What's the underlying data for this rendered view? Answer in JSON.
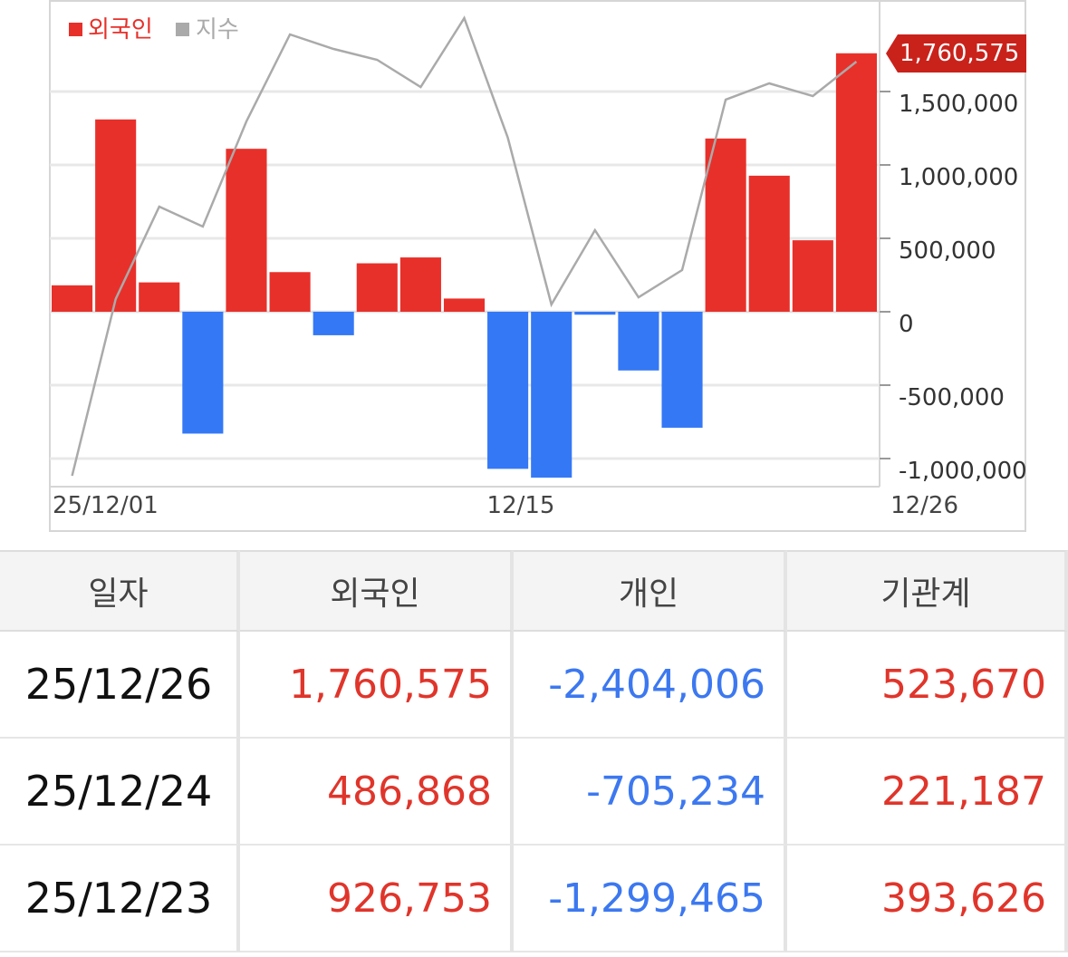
{
  "chart_data": {
    "type": "bar",
    "legend": [
      {
        "name": "외국인",
        "color": "#e8302a"
      },
      {
        "name": "지수",
        "color": "#aaaaaa"
      }
    ],
    "series": [
      {
        "name": "외국인",
        "values": [
          180000,
          1310000,
          200000,
          -830000,
          1110000,
          270000,
          -160000,
          330000,
          370000,
          90000,
          -1070000,
          -1130000,
          -20000,
          -400000,
          -790000,
          1180000,
          926753,
          486868,
          1760575
        ]
      },
      {
        "name": "지수",
        "line_index_values": [
          1.5,
          99,
          150,
          139,
          197,
          245,
          237,
          231,
          216,
          254,
          188,
          96,
          137,
          100,
          115,
          209,
          218,
          211,
          230
        ]
      }
    ],
    "x_tick_labels": [
      "25/12/01",
      "12/15",
      "12/26"
    ],
    "y_ticks": [
      1500000,
      1000000,
      500000,
      0,
      -500000,
      -1000000
    ],
    "y_tick_labels": [
      "1,500,000",
      "1,000,000",
      "500,000",
      "0",
      "-500,000",
      "-1,000,000"
    ],
    "ylim": [
      -1150000,
      2100000
    ],
    "grid": true,
    "legend_position": "top-left",
    "last_value_label": "1,760,575",
    "colors": {
      "positive": "#e8302a",
      "negative": "#3478f6",
      "line": "#aaaaaa",
      "callout": "#c9221b"
    }
  },
  "table": {
    "headers": [
      "일자",
      "외국인",
      "개인",
      "기관계"
    ],
    "rows": [
      {
        "date": "25/12/26",
        "foreign": "1,760,575",
        "individual": "-2,404,006",
        "institution": "523,670"
      },
      {
        "date": "25/12/24",
        "foreign": "486,868",
        "individual": "-705,234",
        "institution": "221,187"
      },
      {
        "date": "25/12/23",
        "foreign": "926,753",
        "individual": "-1,299,465",
        "institution": "393,626"
      }
    ]
  }
}
